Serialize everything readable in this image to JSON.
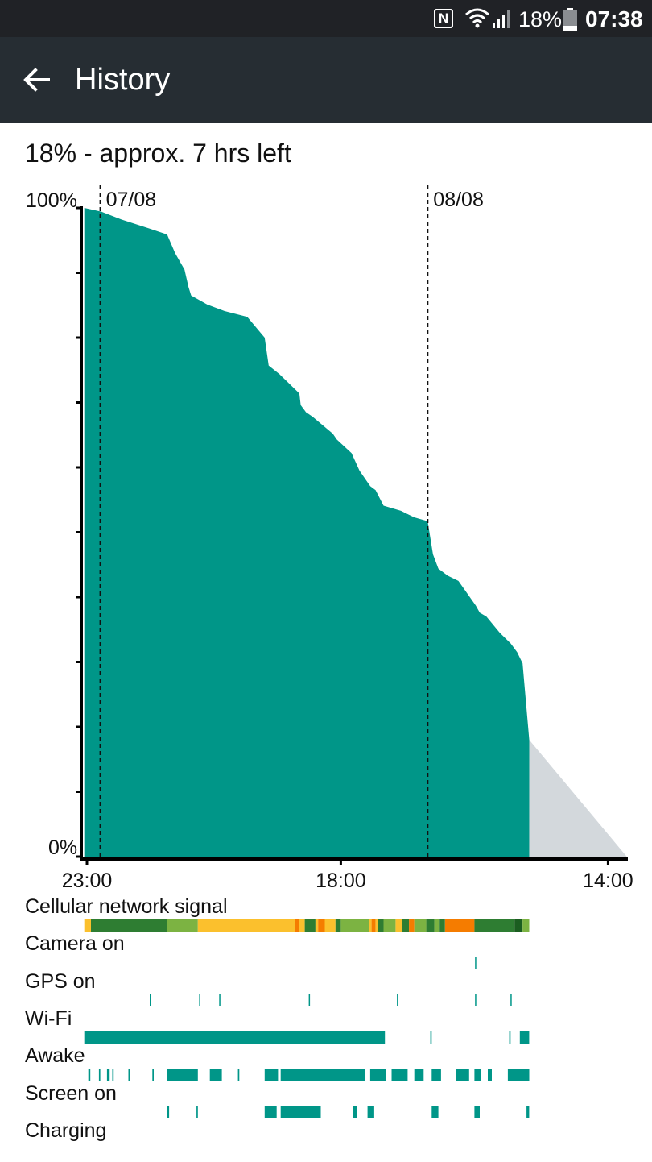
{
  "status_bar": {
    "nfc_label": "N",
    "battery_text": "18%",
    "time": "07:38",
    "icons": [
      "nfc-icon",
      "wifi-icon",
      "cell-signal-icon",
      "battery-icon"
    ]
  },
  "app_bar": {
    "title": "History",
    "back_icon": "arrow-left-icon"
  },
  "summary": "18% - approx. 7 hrs left",
  "chart_data": {
    "type": "area",
    "title": "",
    "xlabel": "",
    "ylabel": "",
    "y_ticks": {
      "max_label": "100%",
      "min_label": "0%"
    },
    "ylim": [
      0,
      100
    ],
    "x_tick_labels": [
      {
        "label": "23:00",
        "hour": 0
      },
      {
        "label": "18:00",
        "hour": 19
      },
      {
        "label": "14:00",
        "hour": 39
      }
    ],
    "date_markers": [
      {
        "label": "07/08",
        "hour": 1
      },
      {
        "label": "08/08",
        "hour": 25.5
      }
    ],
    "history_hours": [
      -0.2,
      1.1,
      2.6,
      4.7,
      6,
      6.6,
      7.3,
      7.6,
      7.8,
      9,
      10.3,
      12,
      13.3,
      13.6,
      14.4,
      15.9,
      16,
      16.4,
      16.9,
      18.4,
      18.7,
      19.8,
      20.4,
      21.2,
      21.6,
      22.2,
      23.5,
      24.5,
      25.5,
      25.9,
      26.3,
      27,
      27.8,
      29.1,
      29.4,
      29.9,
      30.9,
      31.7,
      32.2,
      32.6,
      33.1
    ],
    "history_values": [
      100,
      99.4,
      98.2,
      96.8,
      95.9,
      93,
      90.5,
      87.8,
      86.5,
      85.1,
      84.1,
      83.2,
      80,
      75.7,
      74.4,
      71.4,
      69.6,
      68.5,
      67.8,
      65.2,
      64.3,
      62.2,
      59.5,
      57.1,
      56.5,
      54.1,
      53.3,
      52.3,
      51.7,
      46.6,
      44.4,
      43.3,
      42.5,
      38.7,
      37.6,
      37.0,
      34.5,
      32.9,
      31.5,
      29.8,
      18
    ],
    "current_value": 18,
    "projection_end_hour": 40.4,
    "series_colors": {
      "history": "#009688",
      "projection": "#d3d8dc"
    }
  },
  "timeline": {
    "start_hour": -0.2,
    "end_hour": 33.1,
    "rows": [
      {
        "label": "Cellular network signal",
        "type": "signal",
        "segments": [
          [
            -0.2,
            0.3,
            "#fbc02d"
          ],
          [
            0.3,
            6,
            "#2e7d32"
          ],
          [
            6,
            8.3,
            "#7cb342"
          ],
          [
            8.3,
            15.6,
            "#fbc02d"
          ],
          [
            15.6,
            15.9,
            "#f57c00"
          ],
          [
            15.9,
            16.3,
            "#fbc02d"
          ],
          [
            16.3,
            17.1,
            "#2e7d32"
          ],
          [
            17.1,
            17.3,
            "#fbc02d"
          ],
          [
            17.3,
            17.8,
            "#f57c00"
          ],
          [
            17.8,
            18.6,
            "#fbc02d"
          ],
          [
            18.6,
            19,
            "#2e7d32"
          ],
          [
            19,
            21.1,
            "#7cb342"
          ],
          [
            21.1,
            21.3,
            "#fbc02d"
          ],
          [
            21.3,
            21.6,
            "#f57c00"
          ],
          [
            21.6,
            21.8,
            "#fbc02d"
          ],
          [
            21.8,
            22.2,
            "#2e7d32"
          ],
          [
            22.2,
            23.1,
            "#7cb342"
          ],
          [
            23.1,
            23.6,
            "#fbc02d"
          ],
          [
            23.6,
            24.1,
            "#2e7d32"
          ],
          [
            24.1,
            24.5,
            "#f57c00"
          ],
          [
            24.5,
            25.4,
            "#7cb342"
          ],
          [
            25.4,
            26,
            "#2e7d32"
          ],
          [
            26,
            26.4,
            "#7cb342"
          ],
          [
            26.4,
            26.8,
            "#2e7d32"
          ],
          [
            26.8,
            29,
            "#f57c00"
          ],
          [
            29,
            32,
            "#2e7d32"
          ],
          [
            32,
            32.6,
            "#1b5e20"
          ],
          [
            32.6,
            33.1,
            "#7cb342"
          ]
        ]
      },
      {
        "label": "Camera on",
        "type": "bars",
        "ranges": [
          [
            29.05,
            29.1
          ]
        ]
      },
      {
        "label": "GPS on",
        "type": "bars",
        "ranges": [
          [
            4.7,
            4.75
          ],
          [
            8.4,
            8.45
          ],
          [
            9.9,
            9.95
          ],
          [
            16.6,
            16.65
          ],
          [
            23.2,
            23.25
          ],
          [
            29.05,
            29.1
          ],
          [
            31.7,
            31.75
          ]
        ]
      },
      {
        "label": "Wi-Fi",
        "type": "bars",
        "ranges": [
          [
            -0.2,
            22.3
          ],
          [
            25.7,
            25.8
          ],
          [
            31.6,
            31.7
          ],
          [
            32.4,
            33.1
          ]
        ]
      },
      {
        "label": "Awake",
        "type": "bars",
        "ranges": [
          [
            0.1,
            0.25
          ],
          [
            0.9,
            1.0
          ],
          [
            1.5,
            1.7
          ],
          [
            1.9,
            2.0
          ],
          [
            3.1,
            3.2
          ],
          [
            4.9,
            5.0
          ],
          [
            6,
            8.3
          ],
          [
            9.2,
            10.1
          ],
          [
            11.3,
            11.4
          ],
          [
            13.3,
            14.3
          ],
          [
            14.5,
            20.8
          ],
          [
            21.2,
            22.4
          ],
          [
            22.8,
            24.0
          ],
          [
            24.5,
            25.2
          ],
          [
            25.8,
            26.5
          ],
          [
            27.6,
            28.6
          ],
          [
            29,
            29.5
          ],
          [
            30,
            30.3
          ],
          [
            31.5,
            33.1
          ]
        ]
      },
      {
        "label": "Screen on",
        "type": "bars",
        "ranges": [
          [
            6,
            6.15
          ],
          [
            8.2,
            8.3
          ],
          [
            13.3,
            14.2
          ],
          [
            14.5,
            17.5
          ],
          [
            19.9,
            20.2
          ],
          [
            21.0,
            21.5
          ],
          [
            25.8,
            26.3
          ],
          [
            29,
            29.4
          ],
          [
            32.9,
            33.1
          ]
        ]
      },
      {
        "label": "Charging",
        "type": "bars",
        "ranges": []
      }
    ]
  }
}
